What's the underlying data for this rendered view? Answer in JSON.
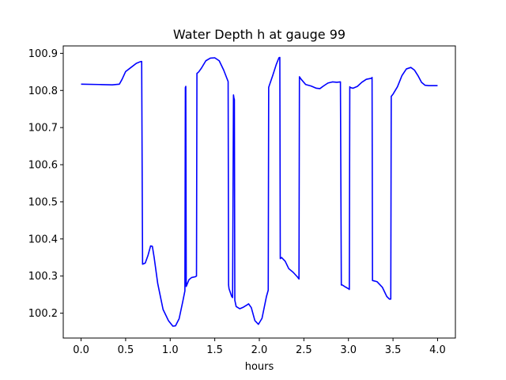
{
  "chart_data": {
    "type": "line",
    "title": "Water Depth h at gauge 99",
    "xlabel": "hours",
    "ylabel": "",
    "xlim": [
      -0.2,
      4.2
    ],
    "ylim": [
      100.133,
      100.92
    ],
    "xticks": [
      0.0,
      0.5,
      1.0,
      1.5,
      2.0,
      2.5,
      3.0,
      3.5,
      4.0
    ],
    "xtick_labels": [
      "0.0",
      "0.5",
      "1.0",
      "1.5",
      "2.0",
      "2.5",
      "3.0",
      "3.5",
      "4.0"
    ],
    "yticks": [
      100.2,
      100.3,
      100.4,
      100.5,
      100.6,
      100.7,
      100.8,
      100.9
    ],
    "ytick_labels": [
      "100.2",
      "100.3",
      "100.4",
      "100.5",
      "100.6",
      "100.7",
      "100.8",
      "100.9"
    ],
    "grid": false,
    "series": [
      {
        "name": "",
        "color": "#0000ff",
        "x": [
          0.0,
          0.2,
          0.35,
          0.43,
          0.46,
          0.5,
          0.56,
          0.62,
          0.67,
          0.68,
          0.69,
          0.72,
          0.75,
          0.78,
          0.8,
          0.82,
          0.86,
          0.92,
          0.98,
          1.03,
          1.06,
          1.1,
          1.14,
          1.165,
          1.17,
          1.175,
          1.18,
          1.21,
          1.24,
          1.28,
          1.295,
          1.3,
          1.32,
          1.35,
          1.4,
          1.45,
          1.5,
          1.55,
          1.6,
          1.65,
          1.655,
          1.66,
          1.69,
          1.7,
          1.71,
          1.715,
          1.72,
          1.725,
          1.74,
          1.78,
          1.82,
          1.86,
          1.88,
          1.91,
          1.95,
          1.99,
          2.03,
          2.08,
          2.1,
          2.105,
          2.11,
          2.15,
          2.19,
          2.22,
          2.23,
          2.235,
          2.25,
          2.29,
          2.33,
          2.38,
          2.43,
          2.445,
          2.45,
          2.47,
          2.52,
          2.58,
          2.64,
          2.68,
          2.72,
          2.77,
          2.82,
          2.87,
          2.91,
          2.92,
          2.93,
          2.97,
          3.0,
          3.01,
          3.015,
          3.02,
          3.05,
          3.1,
          3.15,
          3.2,
          3.26,
          3.265,
          3.27,
          3.32,
          3.38,
          3.43,
          3.46,
          3.475,
          3.48,
          3.5,
          3.55,
          3.6,
          3.65,
          3.7,
          3.74,
          3.78,
          3.82,
          3.86,
          3.9,
          3.94,
          4.0
        ],
        "y": [
          100.817,
          100.816,
          100.815,
          100.817,
          100.83,
          100.851,
          100.862,
          100.873,
          100.878,
          100.878,
          100.332,
          100.335,
          100.355,
          100.381,
          100.38,
          100.35,
          100.28,
          100.21,
          100.18,
          100.165,
          100.166,
          100.185,
          100.23,
          100.26,
          100.808,
          100.811,
          100.272,
          100.29,
          100.296,
          100.298,
          100.3,
          100.846,
          100.85,
          100.86,
          100.88,
          100.887,
          100.888,
          100.88,
          100.855,
          100.824,
          100.276,
          100.266,
          100.245,
          100.242,
          100.788,
          100.78,
          100.775,
          100.235,
          100.218,
          100.212,
          100.216,
          100.222,
          100.225,
          100.215,
          100.18,
          100.17,
          100.186,
          100.245,
          100.262,
          100.808,
          100.812,
          100.84,
          100.87,
          100.888,
          100.889,
          100.347,
          100.35,
          100.34,
          100.32,
          100.31,
          100.297,
          100.292,
          100.837,
          100.83,
          100.816,
          100.812,
          100.806,
          100.805,
          100.812,
          100.82,
          100.823,
          100.822,
          100.823,
          100.276,
          100.276,
          100.27,
          100.266,
          100.264,
          100.81,
          100.808,
          100.806,
          100.811,
          100.822,
          100.83,
          100.833,
          100.835,
          100.288,
          100.285,
          100.27,
          100.245,
          100.238,
          100.238,
          100.784,
          100.79,
          100.81,
          100.84,
          100.858,
          100.862,
          100.855,
          100.84,
          100.822,
          100.814,
          100.813,
          100.813,
          100.813
        ]
      }
    ]
  }
}
